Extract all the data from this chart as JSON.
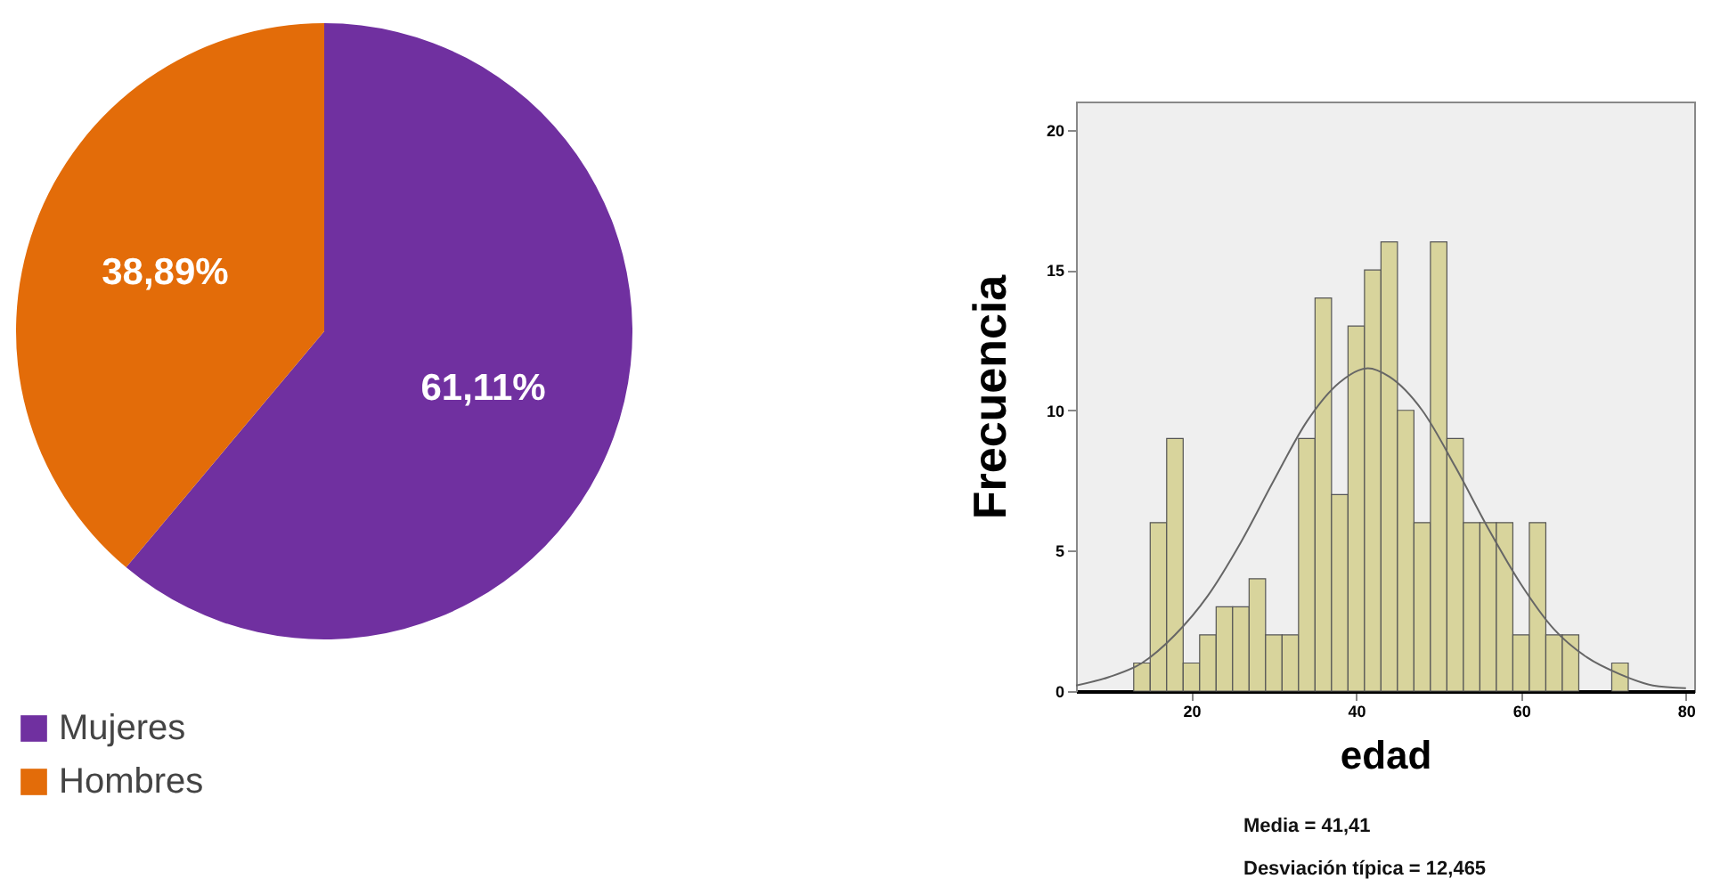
{
  "chart_data": [
    {
      "type": "pie",
      "categories": [
        "Mujeres",
        "Hombres"
      ],
      "values": [
        61.11,
        38.89
      ],
      "colors": [
        "#7030a0",
        "#e36c09"
      ],
      "value_labels": [
        "61,11%",
        "38,89%"
      ],
      "legend": "bottom"
    },
    {
      "type": "histogram",
      "xlabel": "edad",
      "ylabel": "Frecuencia",
      "color": "#d8d49c",
      "bins": [
        13,
        15,
        17,
        19,
        21,
        23,
        25,
        27,
        29,
        31,
        33,
        35,
        37,
        39,
        41,
        43,
        45,
        47,
        49,
        51,
        53,
        55,
        57,
        59,
        61,
        63,
        65,
        67,
        69,
        71,
        73
      ],
      "values": [
        1,
        6,
        9,
        1,
        2,
        3,
        3,
        4,
        2,
        2,
        9,
        14,
        7,
        13,
        15,
        16,
        10,
        6,
        16,
        9,
        6,
        6,
        6,
        2,
        6,
        2,
        2,
        0,
        0,
        1
      ],
      "series": [
        {
          "type": "line",
          "color": "#666666",
          "x": [
            6,
            10,
            14,
            18,
            22,
            26,
            30,
            34,
            38,
            41.4,
            44,
            48,
            52,
            56,
            60,
            64,
            68,
            72,
            76,
            80
          ],
          "values": [
            0.2,
            0.5,
            1.0,
            2.0,
            3.4,
            5.3,
            7.5,
            9.6,
            11.0,
            11.5,
            11.2,
            10.0,
            8.0,
            5.8,
            3.8,
            2.2,
            1.2,
            0.6,
            0.2,
            0.1
          ]
        }
      ],
      "xlim": [
        6,
        81
      ],
      "ylim": [
        0,
        21
      ],
      "xticks": [
        20,
        40,
        60,
        80
      ],
      "yticks": [
        0,
        5,
        10,
        15,
        20
      ],
      "grid": false,
      "annotations": [
        "Media = 41,41",
        "Desviación típica = 12,465"
      ]
    }
  ]
}
